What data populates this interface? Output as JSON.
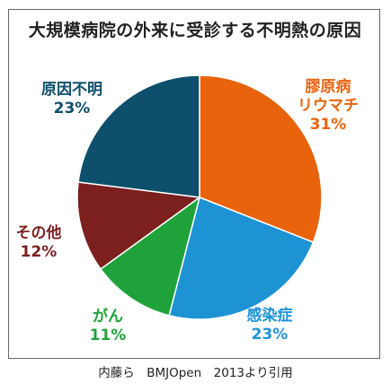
{
  "chart_data": {
    "type": "pie",
    "title": "大規模病院の外来に受診する不明熱の原因",
    "slices": [
      {
        "label_lines": [
          "膠原病",
          "リウマチ"
        ],
        "value_label": "31%",
        "value": 31,
        "color": "#E8630C"
      },
      {
        "label_lines": [
          "感染症"
        ],
        "value_label": "23%",
        "value": 23,
        "color": "#1E93D4"
      },
      {
        "label_lines": [
          "がん"
        ],
        "value_label": "11%",
        "value": 11,
        "color": "#1FA23A"
      },
      {
        "label_lines": [
          "その他"
        ],
        "value_label": "12%",
        "value": 12,
        "color": "#7B1F1F"
      },
      {
        "label_lines": [
          "原因不明"
        ],
        "value_label": "23%",
        "value": 23,
        "color": "#0E4F6B"
      }
    ],
    "label_colors": [
      "#E8630C",
      "#1E93D4",
      "#1FA23A",
      "#7B1F1F",
      "#0E4F6B"
    ]
  },
  "source": "内藤ら　BMJOpen　2013より引用"
}
